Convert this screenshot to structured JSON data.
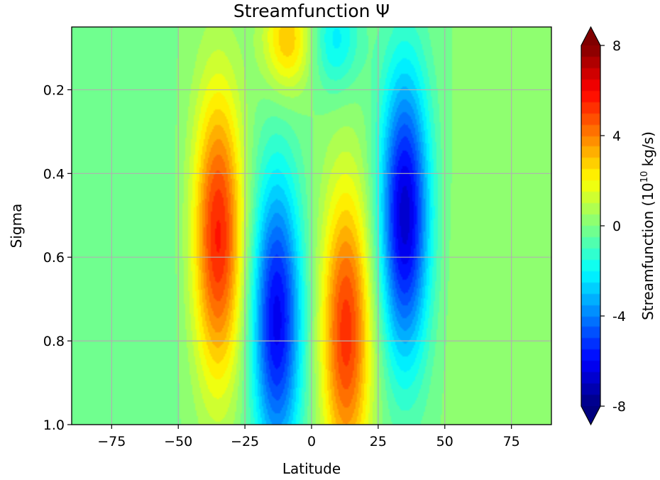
{
  "chart_data": {
    "type": "heatmap",
    "subtype": "filled-contour",
    "title": "Streamfunction Ψ",
    "xlabel": "Latitude",
    "ylabel": "Sigma",
    "xlim": [
      -90,
      90
    ],
    "ylim": [
      0.05,
      1.0
    ],
    "y_inverted": true,
    "grid": true,
    "x_ticks": [
      -75,
      -50,
      -25,
      0,
      25,
      50,
      75
    ],
    "x_tick_labels": [
      "−75",
      "−50",
      "−25",
      "0",
      "25",
      "50",
      "75"
    ],
    "y_ticks": [
      0.2,
      0.4,
      0.6,
      0.8,
      1.0
    ],
    "y_tick_labels": [
      "0.2",
      "0.4",
      "0.6",
      "0.8",
      "1.0"
    ],
    "colormap": "jet",
    "colorbar": {
      "label_main": "Streamfunction (10",
      "label_exp": "10",
      "label_unit": " kg/s)",
      "vmin": -8,
      "vmax": 8,
      "extend": "both",
      "ticks": [
        8,
        4,
        0,
        -4,
        -8
      ],
      "tick_labels": [
        "8",
        "4",
        "0",
        "-4",
        "-8"
      ]
    },
    "features": [
      {
        "name": "southern-positive-cell",
        "lat": -35,
        "sigma": 0.55,
        "value": 5.6
      },
      {
        "name": "southern-negative-cell",
        "lat": -13,
        "sigma": 0.75,
        "value": -6.2
      },
      {
        "name": "northern-positive-cell",
        "lat": 13,
        "sigma": 0.78,
        "value": 5.3
      },
      {
        "name": "northern-negative-cell",
        "lat": 35,
        "sigma": 0.5,
        "value": -6.8
      },
      {
        "name": "upper-positive-cell",
        "lat": -9,
        "sigma": 0.08,
        "value": 3.0
      },
      {
        "name": "upper-negative-cell",
        "lat": 9,
        "sigma": 0.08,
        "value": -2.2
      },
      {
        "name": "weak-negative-sh",
        "lat": -62,
        "sigma": 0.6,
        "value": -0.5
      },
      {
        "name": "weak-positive-nh",
        "lat": 62,
        "sigma": 0.68,
        "value": 0.4
      }
    ]
  }
}
